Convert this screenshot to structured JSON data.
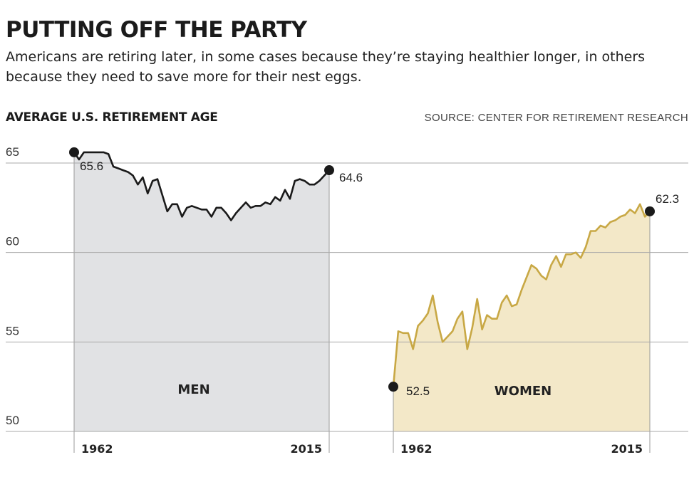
{
  "header": {
    "title": "PUTTING OFF THE PARTY",
    "subtitle": "Americans are retiring later, in some cases because they’re staying healthier longer, in others because they need to save more for their nest eggs."
  },
  "chart_data": {
    "type": "area",
    "title": "AVERAGE U.S. RETIREMENT AGE",
    "source": "SOURCE: CENTER FOR RETIREMENT RESEARCH",
    "ylim": [
      50,
      65
    ],
    "yticks": [
      "65",
      "60",
      "55",
      "50"
    ],
    "grid": true,
    "panels": [
      {
        "name": "MEN",
        "x_start": 1962,
        "x_end": 2015,
        "x_tick_labels": [
          "1962",
          "2015"
        ],
        "start_label": "65.6",
        "end_label": "64.6",
        "color": "#1a1a1a",
        "fill": "#e1e2e4",
        "values": [
          65.6,
          65.2,
          65.6,
          65.6,
          65.6,
          65.6,
          65.6,
          65.5,
          64.8,
          64.7,
          64.6,
          64.5,
          64.3,
          63.8,
          64.2,
          63.3,
          64.0,
          64.1,
          63.2,
          62.3,
          62.7,
          62.7,
          62.0,
          62.5,
          62.6,
          62.5,
          62.4,
          62.4,
          62.0,
          62.5,
          62.5,
          62.2,
          61.8,
          62.2,
          62.5,
          62.8,
          62.5,
          62.6,
          62.6,
          62.8,
          62.7,
          63.1,
          62.9,
          63.5,
          63.0,
          64.0,
          64.1,
          64.0,
          63.8,
          63.8,
          64.0,
          64.3,
          64.6
        ]
      },
      {
        "name": "WOMEN",
        "x_start": 1962,
        "x_end": 2015,
        "x_tick_labels": [
          "1962",
          "2015"
        ],
        "start_label": "52.5",
        "end_label": "62.3",
        "color": "#c8a845",
        "fill": "#f3e8c8",
        "values": [
          52.5,
          55.6,
          55.5,
          55.5,
          54.6,
          55.9,
          56.2,
          56.6,
          57.6,
          56.1,
          55.0,
          55.3,
          55.6,
          56.3,
          56.7,
          54.6,
          55.8,
          57.4,
          55.7,
          56.5,
          56.3,
          56.3,
          57.2,
          57.6,
          57.0,
          57.1,
          57.9,
          58.6,
          59.3,
          59.1,
          58.7,
          58.5,
          59.3,
          59.8,
          59.2,
          59.9,
          59.9,
          60.0,
          59.7,
          60.3,
          61.2,
          61.2,
          61.5,
          61.4,
          61.7,
          61.8,
          62.0,
          62.1,
          62.4,
          62.2,
          62.7,
          62.0,
          62.3
        ]
      }
    ]
  }
}
